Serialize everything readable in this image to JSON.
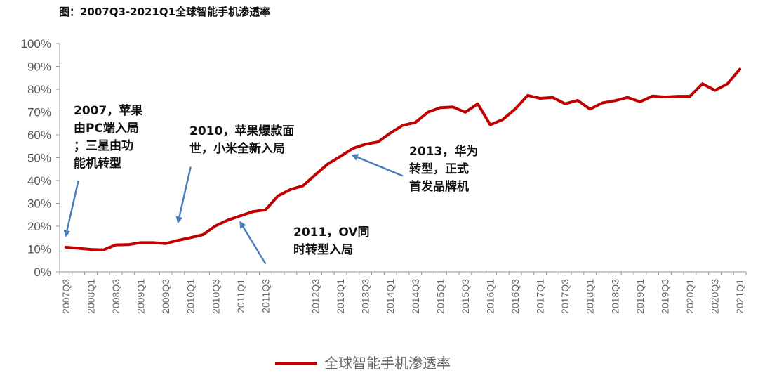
{
  "page": {
    "title": "图：2007Q3-2021Q1全球智能手机渗透率"
  },
  "chart_data": {
    "type": "line",
    "title": "图：2007Q3-2021Q1全球智能手机渗透率",
    "xlabel": "",
    "ylabel": "",
    "ylim": [
      0,
      100
    ],
    "y_ticks": [
      "0%",
      "10%",
      "20%",
      "30%",
      "40%",
      "50%",
      "60%",
      "70%",
      "80%",
      "90%",
      "100%"
    ],
    "grid": false,
    "legend_position": "bottom",
    "x": [
      "2007Q3",
      "2007Q4",
      "2008Q1",
      "2008Q2",
      "2008Q3",
      "2008Q4",
      "2009Q1",
      "2009Q2",
      "2009Q3",
      "2009Q4",
      "2010Q1",
      "2010Q2",
      "2010Q3",
      "2010Q4",
      "2011Q1",
      "2011Q2",
      "2011Q3",
      "2011Q4",
      "2012Q1",
      "2012Q2",
      "2012Q3",
      "2012Q4",
      "2013Q1",
      "2013Q2",
      "2013Q3",
      "2013Q4",
      "2014Q1",
      "2014Q2",
      "2014Q3",
      "2014Q4",
      "2015Q1",
      "2015Q2",
      "2015Q3",
      "2015Q4",
      "2016Q1",
      "2016Q2",
      "2016Q3",
      "2016Q4",
      "2017Q1",
      "2017Q2",
      "2017Q3",
      "2017Q4",
      "2018Q1",
      "2018Q2",
      "2018Q3",
      "2018Q4",
      "2019Q1",
      "2019Q2",
      "2019Q3",
      "2019Q4",
      "2020Q1",
      "2020Q2",
      "2020Q3",
      "2020Q4",
      "2021Q1"
    ],
    "x_tick_labels": [
      "2007Q3",
      "2008Q1",
      "2008Q3",
      "2009Q1",
      "2009Q3",
      "2010Q1",
      "2010Q3",
      "2011Q1",
      "2011Q3",
      "2012Q3",
      "2013Q1",
      "2013Q3",
      "2014Q1",
      "2014Q3",
      "2015Q1",
      "2015Q3",
      "2016Q1",
      "2016Q3",
      "2017Q1",
      "2017Q3",
      "2018Q1",
      "2018Q3",
      "2019Q1",
      "2019Q3",
      "2020Q1",
      "2020Q3",
      "2021Q1"
    ],
    "series": [
      {
        "name": "全球智能手机渗透率",
        "color": "#c00000",
        "values": [
          10.8,
          10.3,
          9.8,
          9.6,
          11.8,
          11.9,
          12.8,
          12.8,
          12.4,
          13.8,
          15.0,
          16.3,
          20.2,
          22.7,
          24.6,
          26.4,
          27.2,
          33.3,
          36.1,
          37.7,
          42.6,
          47.3,
          50.6,
          54.1,
          55.9,
          56.9,
          60.8,
          64.2,
          65.4,
          69.9,
          71.9,
          72.2,
          69.9,
          73.6,
          64.4,
          66.7,
          71.3,
          77.3,
          76.0,
          76.4,
          73.6,
          75.1,
          71.3,
          74.0,
          75.0,
          76.4,
          74.5,
          77.0,
          76.6,
          76.9,
          76.9,
          82.4,
          79.5,
          82.3,
          88.8
        ]
      }
    ],
    "annotations": [
      {
        "lines": [
          "2007，苹果",
          "由PC端入局",
          "；三星由功",
          "能机转型"
        ],
        "arrow_tail": [
          "2007Q4",
          40
        ],
        "arrow_head": [
          "2007Q3",
          16
        ]
      },
      {
        "lines": [
          "2010，苹果爆款面",
          "世，小米全新入局"
        ],
        "arrow_tail": [
          "2010Q1",
          46
        ],
        "arrow_head": [
          "2009Q4",
          22
        ]
      },
      {
        "lines": [
          "2011，OV同",
          "时转型入局"
        ],
        "arrow_tail": [
          "2011Q3",
          3.5
        ],
        "arrow_head": [
          "2011Q1",
          21.5
        ]
      },
      {
        "lines": [
          "2013，华为",
          "转型，正式",
          "首发品牌机"
        ],
        "arrow_tail": [
          "2014Q2",
          42
        ],
        "arrow_head": [
          "2013Q2",
          51
        ]
      }
    ]
  }
}
